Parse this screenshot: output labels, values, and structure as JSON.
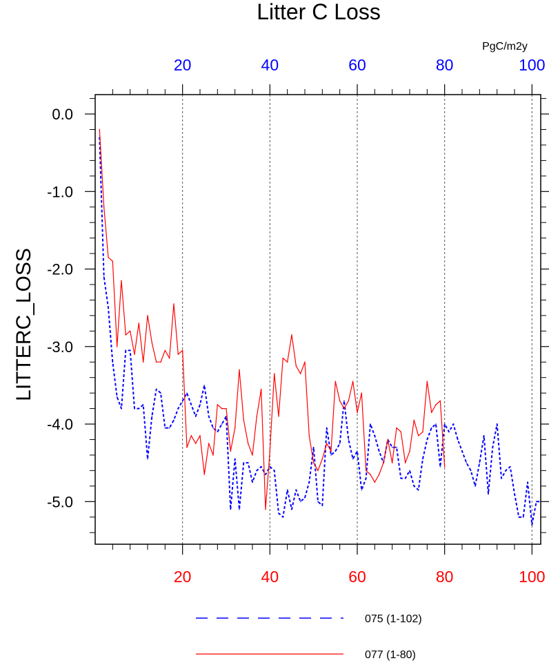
{
  "chart_data": {
    "type": "line",
    "title": "Litter C Loss",
    "ylabel": "LITTERC_LOSS",
    "units": "PgC/m2y",
    "xlim": [
      0,
      102
    ],
    "ylim": [
      -5.55,
      0.25
    ],
    "yticks": [
      {
        "value": 0,
        "label": "0.0"
      },
      {
        "value": -1,
        "label": "-1.0"
      },
      {
        "value": -2,
        "label": "-2.0"
      },
      {
        "value": -3,
        "label": "-3.0"
      },
      {
        "value": -4,
        "label": "-4.0"
      },
      {
        "value": -5,
        "label": "-5.0"
      }
    ],
    "top_axis_ticks": [
      "20",
      "40",
      "60",
      "80",
      "100"
    ],
    "top_axis_values": [
      20,
      40,
      60,
      80,
      100
    ],
    "bottom_axis_ticks": [
      "20",
      "40",
      "60",
      "80",
      "100"
    ],
    "bottom_axis_values": [
      20,
      40,
      60,
      80,
      100
    ],
    "gridlines_x": [
      20,
      40,
      60,
      80,
      100
    ],
    "series": [
      {
        "name": "075 (1-102)",
        "axis": "top",
        "color": "#0000ff",
        "dash": "dashed",
        "values": [
          -0.3,
          -2.1,
          -2.5,
          -3.2,
          -3.65,
          -3.8,
          -3.05,
          -3.05,
          -3.8,
          -3.8,
          -3.75,
          -4.45,
          -3.9,
          -3.55,
          -3.6,
          -4.05,
          -4.05,
          -3.95,
          -3.8,
          -3.7,
          -3.6,
          -3.75,
          -3.9,
          -3.75,
          -3.5,
          -3.9,
          -4.05,
          -4.1,
          -4.0,
          -3.9,
          -5.1,
          -4.45,
          -5.1,
          -4.5,
          -4.5,
          -4.75,
          -4.6,
          -4.55,
          -4.65,
          -4.55,
          -4.6,
          -5.15,
          -5.2,
          -4.85,
          -5.1,
          -4.85,
          -5.0,
          -4.95,
          -4.75,
          -4.3,
          -5.0,
          -5.05,
          -4.05,
          -4.4,
          -4.35,
          -4.25,
          -3.7,
          -4.2,
          -4.45,
          -4.35,
          -4.85,
          -4.7,
          -4.0,
          -4.15,
          -4.35,
          -4.5,
          -4.2,
          -4.3,
          -4.3,
          -4.7,
          -4.7,
          -4.6,
          -4.8,
          -4.85,
          -4.45,
          -4.2,
          -4.05,
          -4.0,
          -4.55,
          -4.0,
          -4.1,
          -4.0,
          -4.2,
          -4.35,
          -4.5,
          -4.6,
          -4.8,
          -4.5,
          -4.15,
          -4.9,
          -4.3,
          -4.0,
          -4.7,
          -4.6,
          -4.55,
          -4.9,
          -5.2,
          -5.2,
          -4.75,
          -5.3,
          -5.0,
          -5.0
        ]
      },
      {
        "name": "077 (1-80)",
        "axis": "bottom",
        "color": "#ff0000",
        "dash": "solid",
        "values": [
          -0.2,
          -1.2,
          -1.85,
          -1.9,
          -3.0,
          -2.15,
          -2.85,
          -2.8,
          -3.1,
          -2.7,
          -3.2,
          -2.6,
          -2.95,
          -3.2,
          -3.2,
          -3.05,
          -3.15,
          -2.45,
          -3.1,
          -3.05,
          -4.3,
          -4.15,
          -4.25,
          -4.15,
          -4.65,
          -4.25,
          -4.4,
          -3.75,
          -3.8,
          -3.8,
          -4.35,
          -4.05,
          -3.3,
          -3.95,
          -4.25,
          -4.4,
          -3.9,
          -3.55,
          -5.1,
          -4.35,
          -3.35,
          -3.9,
          -3.15,
          -3.2,
          -2.85,
          -3.25,
          -3.35,
          -3.2,
          -4.15,
          -4.5,
          -4.6,
          -4.45,
          -4.25,
          -4.35,
          -3.45,
          -3.7,
          -3.8,
          -3.7,
          -3.45,
          -3.85,
          -3.6,
          -4.6,
          -4.65,
          -4.75,
          -4.65,
          -4.5,
          -4.2,
          -4.5,
          -4.05,
          -4.1,
          -4.5,
          -4.35,
          -3.95,
          -4.15,
          -4.1,
          -3.45,
          -3.85,
          -3.75,
          -3.7,
          -4.55
        ]
      }
    ],
    "legend": {
      "position": "bottom",
      "entries": [
        "075 (1-102)",
        "077 (1-80)"
      ]
    }
  }
}
